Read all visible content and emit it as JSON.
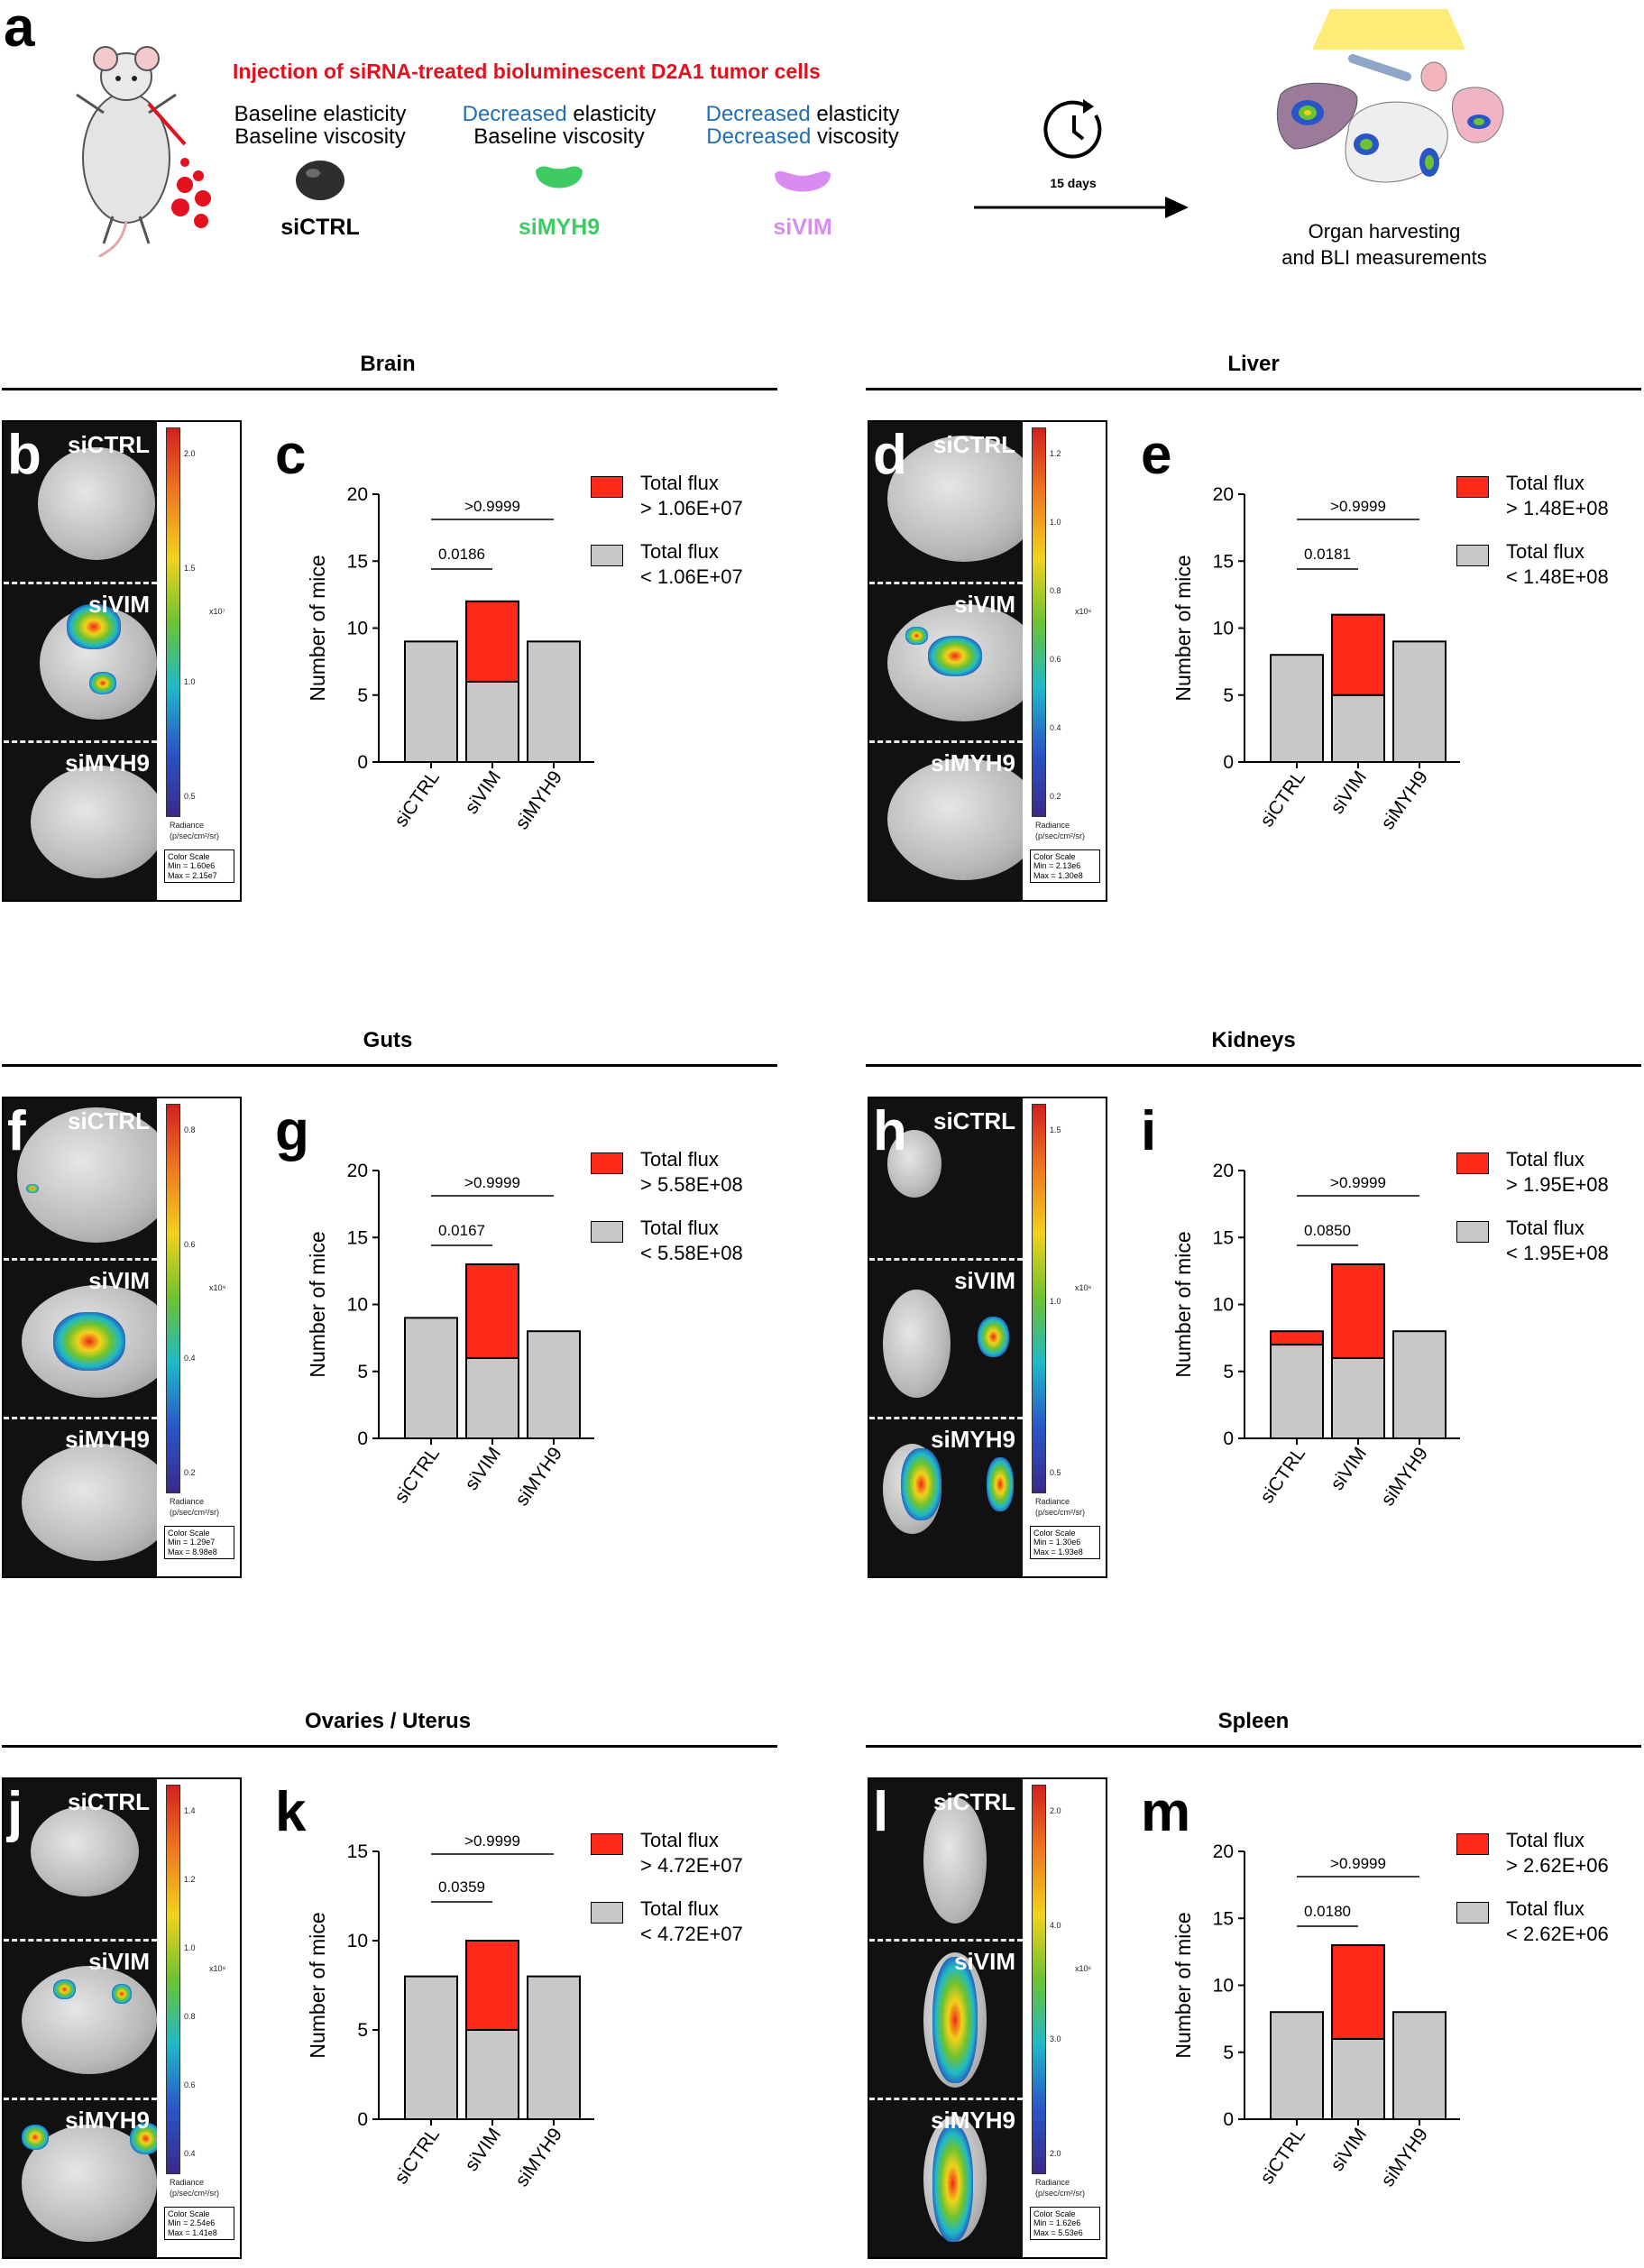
{
  "colors": {
    "red": "#ff2a1a",
    "gray": "#c8c8c8",
    "title_red": "#e3101e",
    "blue": "#1f6fb8",
    "green": "#3ecb63",
    "purple": "#d98cf0"
  },
  "panel_a": {
    "label": "a",
    "title": "Injection of siRNA-treated bioluminescent D2A1 tumor cells",
    "conditions": [
      {
        "line1_prefix": "",
        "line1_rest": "Baseline elasticity",
        "line2_prefix": "",
        "line2_rest": "Baseline viscosity",
        "name": "siCTRL",
        "color": "#000000"
      },
      {
        "line1_prefix": "Decreased",
        "line1_rest": " elasticity",
        "line2_prefix": "",
        "line2_rest": "Baseline viscosity",
        "name": "siMYH9",
        "color": "#3ecb63"
      },
      {
        "line1_prefix": "Decreased",
        "line1_rest": " elasticity",
        "line2_prefix": "Decreased",
        "line2_rest": " viscosity",
        "name": "siVIM",
        "color": "#d98cf0"
      }
    ],
    "timer_label": "15 days",
    "outcome_line1": "Organ harvesting",
    "outcome_line2": "and BLI measurements"
  },
  "organs": [
    {
      "title": "Brain",
      "bli_label": "b",
      "chart_label": "c",
      "bli": {
        "samples": [
          "siCTRL",
          "siVIM",
          "siMYH9"
        ],
        "scale_ticks": [
          "2.0",
          "1.5",
          "1.0",
          "0.5"
        ],
        "exponent": "x10⁷",
        "radiance": "Radiance",
        "radiance_unit": "(p/sec/cm²/sr)",
        "cs_title": "Color Scale",
        "cs_min": "Min = 1.60e6",
        "cs_max": "Max = 2.15e7"
      },
      "legend": {
        "high_line1": "Total flux",
        "high_line2": "> 1.06E+07",
        "low_line1": "Total flux",
        "low_line2": "< 1.06E+07"
      },
      "pvalues": {
        "top": ">0.9999",
        "bottom": "0.0186"
      }
    },
    {
      "title": "Liver",
      "bli_label": "d",
      "chart_label": "e",
      "bli": {
        "samples": [
          "siCTRL",
          "siVIM",
          "siMYH9"
        ],
        "scale_ticks": [
          "1.2",
          "1.0",
          "0.8",
          "0.6",
          "0.4",
          "0.2"
        ],
        "exponent": "x10⁸",
        "radiance": "Radiance",
        "radiance_unit": "(p/sec/cm²/sr)",
        "cs_title": "Color Scale",
        "cs_min": "Min = 2.13e6",
        "cs_max": "Max = 1.30e8"
      },
      "legend": {
        "high_line1": "Total flux",
        "high_line2": "> 1.48E+08",
        "low_line1": "Total flux",
        "low_line2": "< 1.48E+08"
      },
      "pvalues": {
        "top": ">0.9999",
        "bottom": "0.0181"
      }
    },
    {
      "title": "Guts",
      "bli_label": "f",
      "chart_label": "g",
      "bli": {
        "samples": [
          "siCTRL",
          "siVIM",
          "siMYH9"
        ],
        "scale_ticks": [
          "0.8",
          "0.6",
          "0.4",
          "0.2"
        ],
        "exponent": "x10⁹",
        "radiance": "Radiance",
        "radiance_unit": "(p/sec/cm²/sr)",
        "cs_title": "Color Scale",
        "cs_min": "Min = 1.29e7",
        "cs_max": "Max = 8.98e8"
      },
      "legend": {
        "high_line1": "Total flux",
        "high_line2": "> 5.58E+08",
        "low_line1": "Total flux",
        "low_line2": "< 5.58E+08"
      },
      "pvalues": {
        "top": ">0.9999",
        "bottom": "0.0167"
      }
    },
    {
      "title": "Kidneys",
      "bli_label": "h",
      "chart_label": "i",
      "bli": {
        "samples": [
          "siCTRL",
          "siVIM",
          "siMYH9"
        ],
        "scale_ticks": [
          "1.5",
          "1.0",
          "0.5"
        ],
        "exponent": "x10⁸",
        "radiance": "Radiance",
        "radiance_unit": "(p/sec/cm²/sr)",
        "cs_title": "Color Scale",
        "cs_min": "Min = 1.30e6",
        "cs_max": "Max = 1.93e8"
      },
      "legend": {
        "high_line1": "Total flux",
        "high_line2": "> 1.95E+08",
        "low_line1": "Total flux",
        "low_line2": "< 1.95E+08"
      },
      "pvalues": {
        "top": ">0.9999",
        "bottom": "0.0850"
      }
    },
    {
      "title": "Ovaries / Uterus",
      "bli_label": "j",
      "chart_label": "k",
      "bli": {
        "samples": [
          "siCTRL",
          "siVIM",
          "siMYH9"
        ],
        "scale_ticks": [
          "1.4",
          "1.2",
          "1.0",
          "0.8",
          "0.6",
          "0.4"
        ],
        "exponent": "x10⁸",
        "radiance": "Radiance",
        "radiance_unit": "(p/sec/cm²/sr)",
        "cs_title": "Color Scale",
        "cs_min": "Min = 2.54e6",
        "cs_max": "Max = 1.41e8"
      },
      "legend": {
        "high_line1": "Total flux",
        "high_line2": "> 4.72E+07",
        "low_line1": "Total flux",
        "low_line2": "< 4.72E+07"
      },
      "pvalues": {
        "top": ">0.9999",
        "bottom": "0.0359"
      }
    },
    {
      "title": "Spleen",
      "bli_label": "l",
      "chart_label": "m",
      "bli": {
        "samples": [
          "siCTRL",
          "siVIM",
          "siMYH9"
        ],
        "scale_ticks": [
          "2.0",
          "4.0",
          "3.0",
          "2.0"
        ],
        "exponent": "x10⁶",
        "radiance": "Radiance",
        "radiance_unit": "(p/sec/cm²/sr)",
        "cs_title": "Color Scale",
        "cs_min": "Min = 1.62e6",
        "cs_max": "Max = 5.53e6"
      },
      "legend": {
        "high_line1": "Total flux",
        "high_line2": "> 2.62E+06",
        "low_line1": "Total flux",
        "low_line2": "< 2.62E+06"
      },
      "pvalues": {
        "top": ">0.9999",
        "bottom": "0.0180"
      }
    }
  ],
  "chart_data": [
    {
      "panel": "c",
      "type": "bar",
      "stacked": true,
      "categories": [
        "siCTRL",
        "siVIM",
        "siMYH9"
      ],
      "ylabel": "Number of mice",
      "ylim": [
        0,
        20
      ],
      "yticks": [
        0,
        5,
        10,
        15,
        20
      ],
      "series": [
        {
          "name": "Total flux < 1.06E+07",
          "values": [
            9,
            6,
            9
          ]
        },
        {
          "name": "Total flux > 1.06E+07",
          "values": [
            0,
            6,
            0
          ]
        }
      ],
      "comparisons": [
        {
          "from": "siCTRL",
          "to": "siVIM",
          "p": "0.0186"
        },
        {
          "from": "siCTRL",
          "to": "siMYH9",
          "p": ">0.9999"
        }
      ]
    },
    {
      "panel": "e",
      "type": "bar",
      "stacked": true,
      "categories": [
        "siCTRL",
        "siVIM",
        "siMYH9"
      ],
      "ylabel": "Number of mice",
      "ylim": [
        0,
        20
      ],
      "yticks": [
        0,
        5,
        10,
        15,
        20
      ],
      "series": [
        {
          "name": "Total flux < 1.48E+08",
          "values": [
            8,
            5,
            9
          ]
        },
        {
          "name": "Total flux > 1.48E+08",
          "values": [
            0,
            6,
            0
          ]
        }
      ],
      "comparisons": [
        {
          "from": "siCTRL",
          "to": "siVIM",
          "p": "0.0181"
        },
        {
          "from": "siCTRL",
          "to": "siMYH9",
          "p": ">0.9999"
        }
      ]
    },
    {
      "panel": "g",
      "type": "bar",
      "stacked": true,
      "categories": [
        "siCTRL",
        "siVIM",
        "siMYH9"
      ],
      "ylabel": "Number of mice",
      "ylim": [
        0,
        20
      ],
      "yticks": [
        0,
        5,
        10,
        15,
        20
      ],
      "series": [
        {
          "name": "Total flux < 5.58E+08",
          "values": [
            9,
            6,
            8
          ]
        },
        {
          "name": "Total flux > 5.58E+08",
          "values": [
            0,
            7,
            0
          ]
        }
      ],
      "comparisons": [
        {
          "from": "siCTRL",
          "to": "siVIM",
          "p": "0.0167"
        },
        {
          "from": "siCTRL",
          "to": "siMYH9",
          "p": ">0.9999"
        }
      ]
    },
    {
      "panel": "i",
      "type": "bar",
      "stacked": true,
      "categories": [
        "siCTRL",
        "siVIM",
        "siMYH9"
      ],
      "ylabel": "Number of mice",
      "ylim": [
        0,
        20
      ],
      "yticks": [
        0,
        5,
        10,
        15,
        20
      ],
      "series": [
        {
          "name": "Total flux < 1.95E+08",
          "values": [
            7,
            6,
            8
          ]
        },
        {
          "name": "Total flux > 1.95E+08",
          "values": [
            1,
            7,
            0
          ]
        }
      ],
      "comparisons": [
        {
          "from": "siCTRL",
          "to": "siVIM",
          "p": "0.0850"
        },
        {
          "from": "siCTRL",
          "to": "siMYH9",
          "p": ">0.9999"
        }
      ]
    },
    {
      "panel": "k",
      "type": "bar",
      "stacked": true,
      "categories": [
        "siCTRL",
        "siVIM",
        "siMYH9"
      ],
      "ylabel": "Number of mice",
      "ylim": [
        0,
        15
      ],
      "yticks": [
        0,
        5,
        10,
        15
      ],
      "series": [
        {
          "name": "Total flux < 4.72E+07",
          "values": [
            8,
            5,
            8
          ]
        },
        {
          "name": "Total flux > 4.72E+07",
          "values": [
            0,
            5,
            0
          ]
        }
      ],
      "comparisons": [
        {
          "from": "siCTRL",
          "to": "siVIM",
          "p": "0.0359"
        },
        {
          "from": "siCTRL",
          "to": "siMYH9",
          "p": ">0.9999"
        }
      ]
    },
    {
      "panel": "m",
      "type": "bar",
      "stacked": true,
      "categories": [
        "siCTRL",
        "siVIM",
        "siMYH9"
      ],
      "ylabel": "Number of mice",
      "ylim": [
        0,
        20
      ],
      "yticks": [
        0,
        5,
        10,
        15,
        20
      ],
      "series": [
        {
          "name": "Total flux < 2.62E+06",
          "values": [
            8,
            6,
            8
          ]
        },
        {
          "name": "Total flux > 2.62E+06",
          "values": [
            0,
            7,
            0
          ]
        }
      ],
      "comparisons": [
        {
          "from": "siCTRL",
          "to": "siVIM",
          "p": "0.0180"
        },
        {
          "from": "siCTRL",
          "to": "siMYH9",
          "p": ">0.9999"
        }
      ]
    }
  ]
}
